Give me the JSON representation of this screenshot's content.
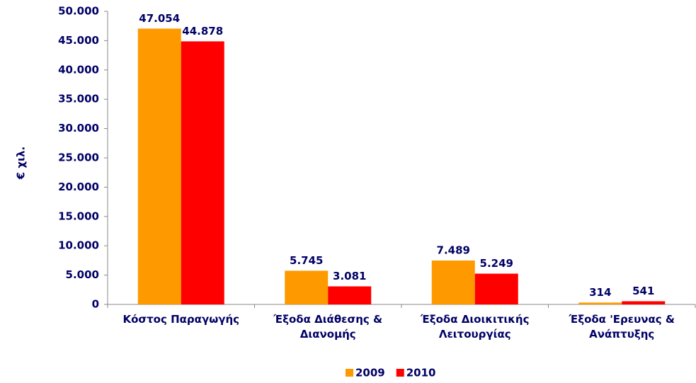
{
  "chart_data": {
    "type": "bar",
    "y_label": "€ χιλ.",
    "categories": [
      "Κόστος Παραγωγής",
      "Έξοδα Διάθεσης & Διανομής",
      "Έξοδα Διοικιτικής Λειτουργίας",
      "Έξοδα 'Ερευνας & Ανάπτυξης"
    ],
    "series": [
      {
        "name": "2009",
        "color": "#ff9900",
        "values": [
          47054,
          5745,
          7489,
          314
        ],
        "value_labels": [
          "47.054",
          "5.745",
          "7.489",
          "314"
        ]
      },
      {
        "name": "2010",
        "color": "#ff0000",
        "values": [
          44878,
          3081,
          5249,
          541
        ],
        "value_labels": [
          "44.878",
          "3.081",
          "5.249",
          "541"
        ]
      }
    ],
    "ylim": [
      0,
      50000
    ],
    "yticks": [
      {
        "value": 0,
        "label": "0"
      },
      {
        "value": 5000,
        "label": "5.000"
      },
      {
        "value": 10000,
        "label": "10.000"
      },
      {
        "value": 15000,
        "label": "15.000"
      },
      {
        "value": 20000,
        "label": "20.000"
      },
      {
        "value": 25000,
        "label": "25.000"
      },
      {
        "value": 30000,
        "label": "30.000"
      },
      {
        "value": 35000,
        "label": "35.000"
      },
      {
        "value": 40000,
        "label": "40.000"
      },
      {
        "value": 45000,
        "label": "45.000"
      },
      {
        "value": 50000,
        "label": "50.000"
      }
    ],
    "legend": "bottom"
  }
}
